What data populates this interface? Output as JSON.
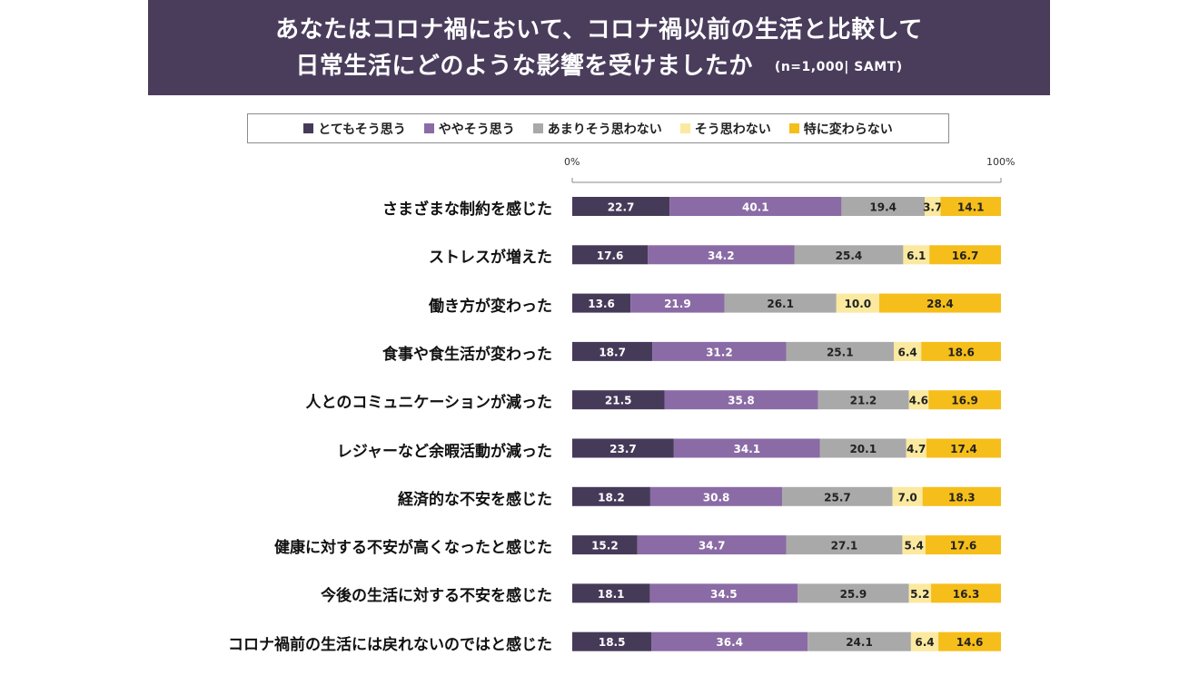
{
  "header": {
    "title_line1": "あなたはコロナ禍において、コロナ禍以前の生活と比較して",
    "title_line2": "日常生活にどのような影響を受けましたか",
    "sample_note": "(n=1,000| SAMT)"
  },
  "legend": [
    {
      "label": "とてもそう思う",
      "color": "#463a59"
    },
    {
      "label": "ややそう思う",
      "color": "#8a6ba5"
    },
    {
      "label": "あまりそう思わない",
      "color": "#a9a9a9"
    },
    {
      "label": "そう思わない",
      "color": "#fbe9a0"
    },
    {
      "label": "特に変わらない",
      "color": "#f6be1a"
    }
  ],
  "chart_data": {
    "type": "bar",
    "orientation": "horizontal-stacked-100",
    "xlim": [
      0,
      100
    ],
    "axis_start_label": "0%",
    "axis_end_label": "100%",
    "categories": [
      "さまざまな制約を感じた",
      "ストレスが増えた",
      "働き方が変わった",
      "食事や食生活が変わった",
      "人とのコミュニケーションが減った",
      "レジャーなど余暇活動が減った",
      "経済的な不安を感じた",
      "健康に対する不安が高くなったと感じた",
      "今後の生活に対する不安を感じた",
      "コロナ禍前の生活には戻れないのではと感じた"
    ],
    "series": [
      {
        "name": "とてもそう思う",
        "color": "#463a59",
        "label_color": "#ffffff",
        "values": [
          22.7,
          17.6,
          13.6,
          18.7,
          21.5,
          23.7,
          18.2,
          15.2,
          18.1,
          18.5
        ]
      },
      {
        "name": "ややそう思う",
        "color": "#8a6ba5",
        "label_color": "#ffffff",
        "values": [
          40.1,
          34.2,
          21.9,
          31.2,
          35.8,
          34.1,
          30.8,
          34.7,
          34.5,
          36.4
        ]
      },
      {
        "name": "あまりそう思わない",
        "color": "#a9a9a9",
        "label_color": "#222222",
        "values": [
          19.4,
          25.4,
          26.1,
          25.1,
          21.2,
          20.1,
          25.7,
          27.1,
          25.9,
          24.1
        ]
      },
      {
        "name": "そう思わない",
        "color": "#fbe9a0",
        "label_color": "#222222",
        "values": [
          3.7,
          6.1,
          10.0,
          6.4,
          4.6,
          4.7,
          7.0,
          5.4,
          5.2,
          6.4
        ]
      },
      {
        "name": "特に変わらない",
        "color": "#f6be1a",
        "label_color": "#222222",
        "values": [
          14.1,
          16.7,
          28.4,
          18.6,
          16.9,
          17.4,
          18.3,
          17.6,
          16.3,
          14.6
        ]
      }
    ]
  }
}
